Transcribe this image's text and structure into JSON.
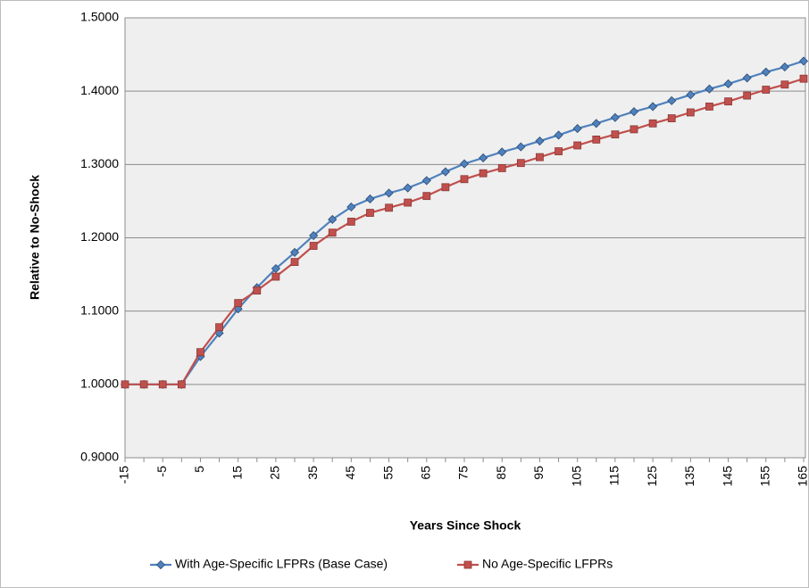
{
  "chart_data": {
    "type": "line",
    "x_label": "Years Since Shock",
    "y_label": "Relative to No-Shock",
    "categories": [
      "-15",
      null,
      "-5",
      null,
      "5",
      null,
      "15",
      null,
      "25",
      null,
      "35",
      null,
      "45",
      null,
      "55",
      null,
      "65",
      null,
      "75",
      null,
      "85",
      null,
      "95",
      null,
      "105",
      null,
      "115",
      null,
      "125",
      null,
      "135",
      null,
      "145",
      null,
      "155",
      null,
      "165"
    ],
    "series": [
      {
        "name": "With Age-Specific LFPRs (Base Case)",
        "color": "#4f81bd",
        "marker": "diamond",
        "values": [
          1.0,
          1.0,
          1.0,
          1.0,
          1.038,
          1.07,
          1.103,
          1.132,
          1.158,
          1.18,
          1.203,
          1.225,
          1.242,
          1.253,
          1.261,
          1.268,
          1.278,
          1.29,
          1.301,
          1.309,
          1.317,
          1.324,
          1.332,
          1.34,
          1.349,
          1.356,
          1.364,
          1.372,
          1.379,
          1.387,
          1.395,
          1.403,
          1.41,
          1.418,
          1.426,
          1.433,
          1.441
        ]
      },
      {
        "name": "No Age-Specific LFPRs",
        "color": "#c0504d",
        "marker": "square",
        "values": [
          1.0,
          1.0,
          1.0,
          1.0,
          1.044,
          1.078,
          1.111,
          1.128,
          1.147,
          1.167,
          1.189,
          1.207,
          1.222,
          1.234,
          1.241,
          1.248,
          1.257,
          1.269,
          1.28,
          1.288,
          1.295,
          1.302,
          1.31,
          1.318,
          1.326,
          1.334,
          1.341,
          1.348,
          1.356,
          1.363,
          1.371,
          1.379,
          1.386,
          1.394,
          1.402,
          1.409,
          1.417
        ]
      }
    ],
    "ylim": [
      0.9,
      1.5
    ],
    "yticks": [
      {
        "value": 0.9,
        "label": "0.9000"
      },
      {
        "value": 1.0,
        "label": "1.0000"
      },
      {
        "value": 1.1,
        "label": "1.1000"
      },
      {
        "value": 1.2,
        "label": "1.2000"
      },
      {
        "value": 1.3,
        "label": "1.3000"
      },
      {
        "value": 1.4,
        "label": "1.4000"
      },
      {
        "value": 1.5,
        "label": "1.5000"
      }
    ],
    "grid": true,
    "legend": "bottom"
  }
}
